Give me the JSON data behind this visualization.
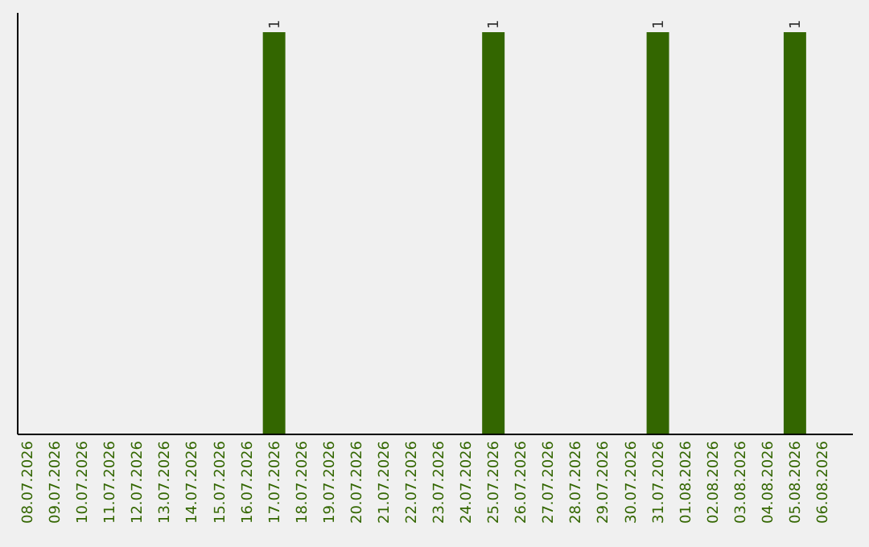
{
  "chart_data": {
    "type": "bar",
    "ylim": [
      0,
      1.04
    ],
    "categories": [
      "08.07.2026",
      "09.07.2026",
      "10.07.2026",
      "11.07.2026",
      "12.07.2026",
      "13.07.2026",
      "14.07.2026",
      "15.07.2026",
      "16.07.2026",
      "17.07.2026",
      "18.07.2026",
      "19.07.2026",
      "20.07.2026",
      "21.07.2026",
      "22.07.2026",
      "23.07.2026",
      "24.07.2026",
      "25.07.2026",
      "26.07.2026",
      "27.07.2026",
      "28.07.2026",
      "29.07.2026",
      "30.07.2026",
      "31.07.2026",
      "01.08.2026",
      "02.08.2026",
      "03.08.2026",
      "04.08.2026",
      "05.08.2026",
      "06.08.2026"
    ],
    "values": [
      0,
      0,
      0,
      0,
      0,
      0,
      0,
      0,
      0,
      1,
      0,
      0,
      0,
      0,
      0,
      0,
      0,
      1,
      0,
      0,
      0,
      0,
      0,
      1,
      0,
      0,
      0,
      0,
      1,
      0
    ],
    "value_labels": [
      null,
      null,
      null,
      null,
      null,
      null,
      null,
      null,
      null,
      "1",
      null,
      null,
      null,
      null,
      null,
      null,
      null,
      "1",
      null,
      null,
      null,
      null,
      null,
      "1",
      null,
      null,
      null,
      null,
      "1",
      null
    ],
    "color": "#336600"
  }
}
